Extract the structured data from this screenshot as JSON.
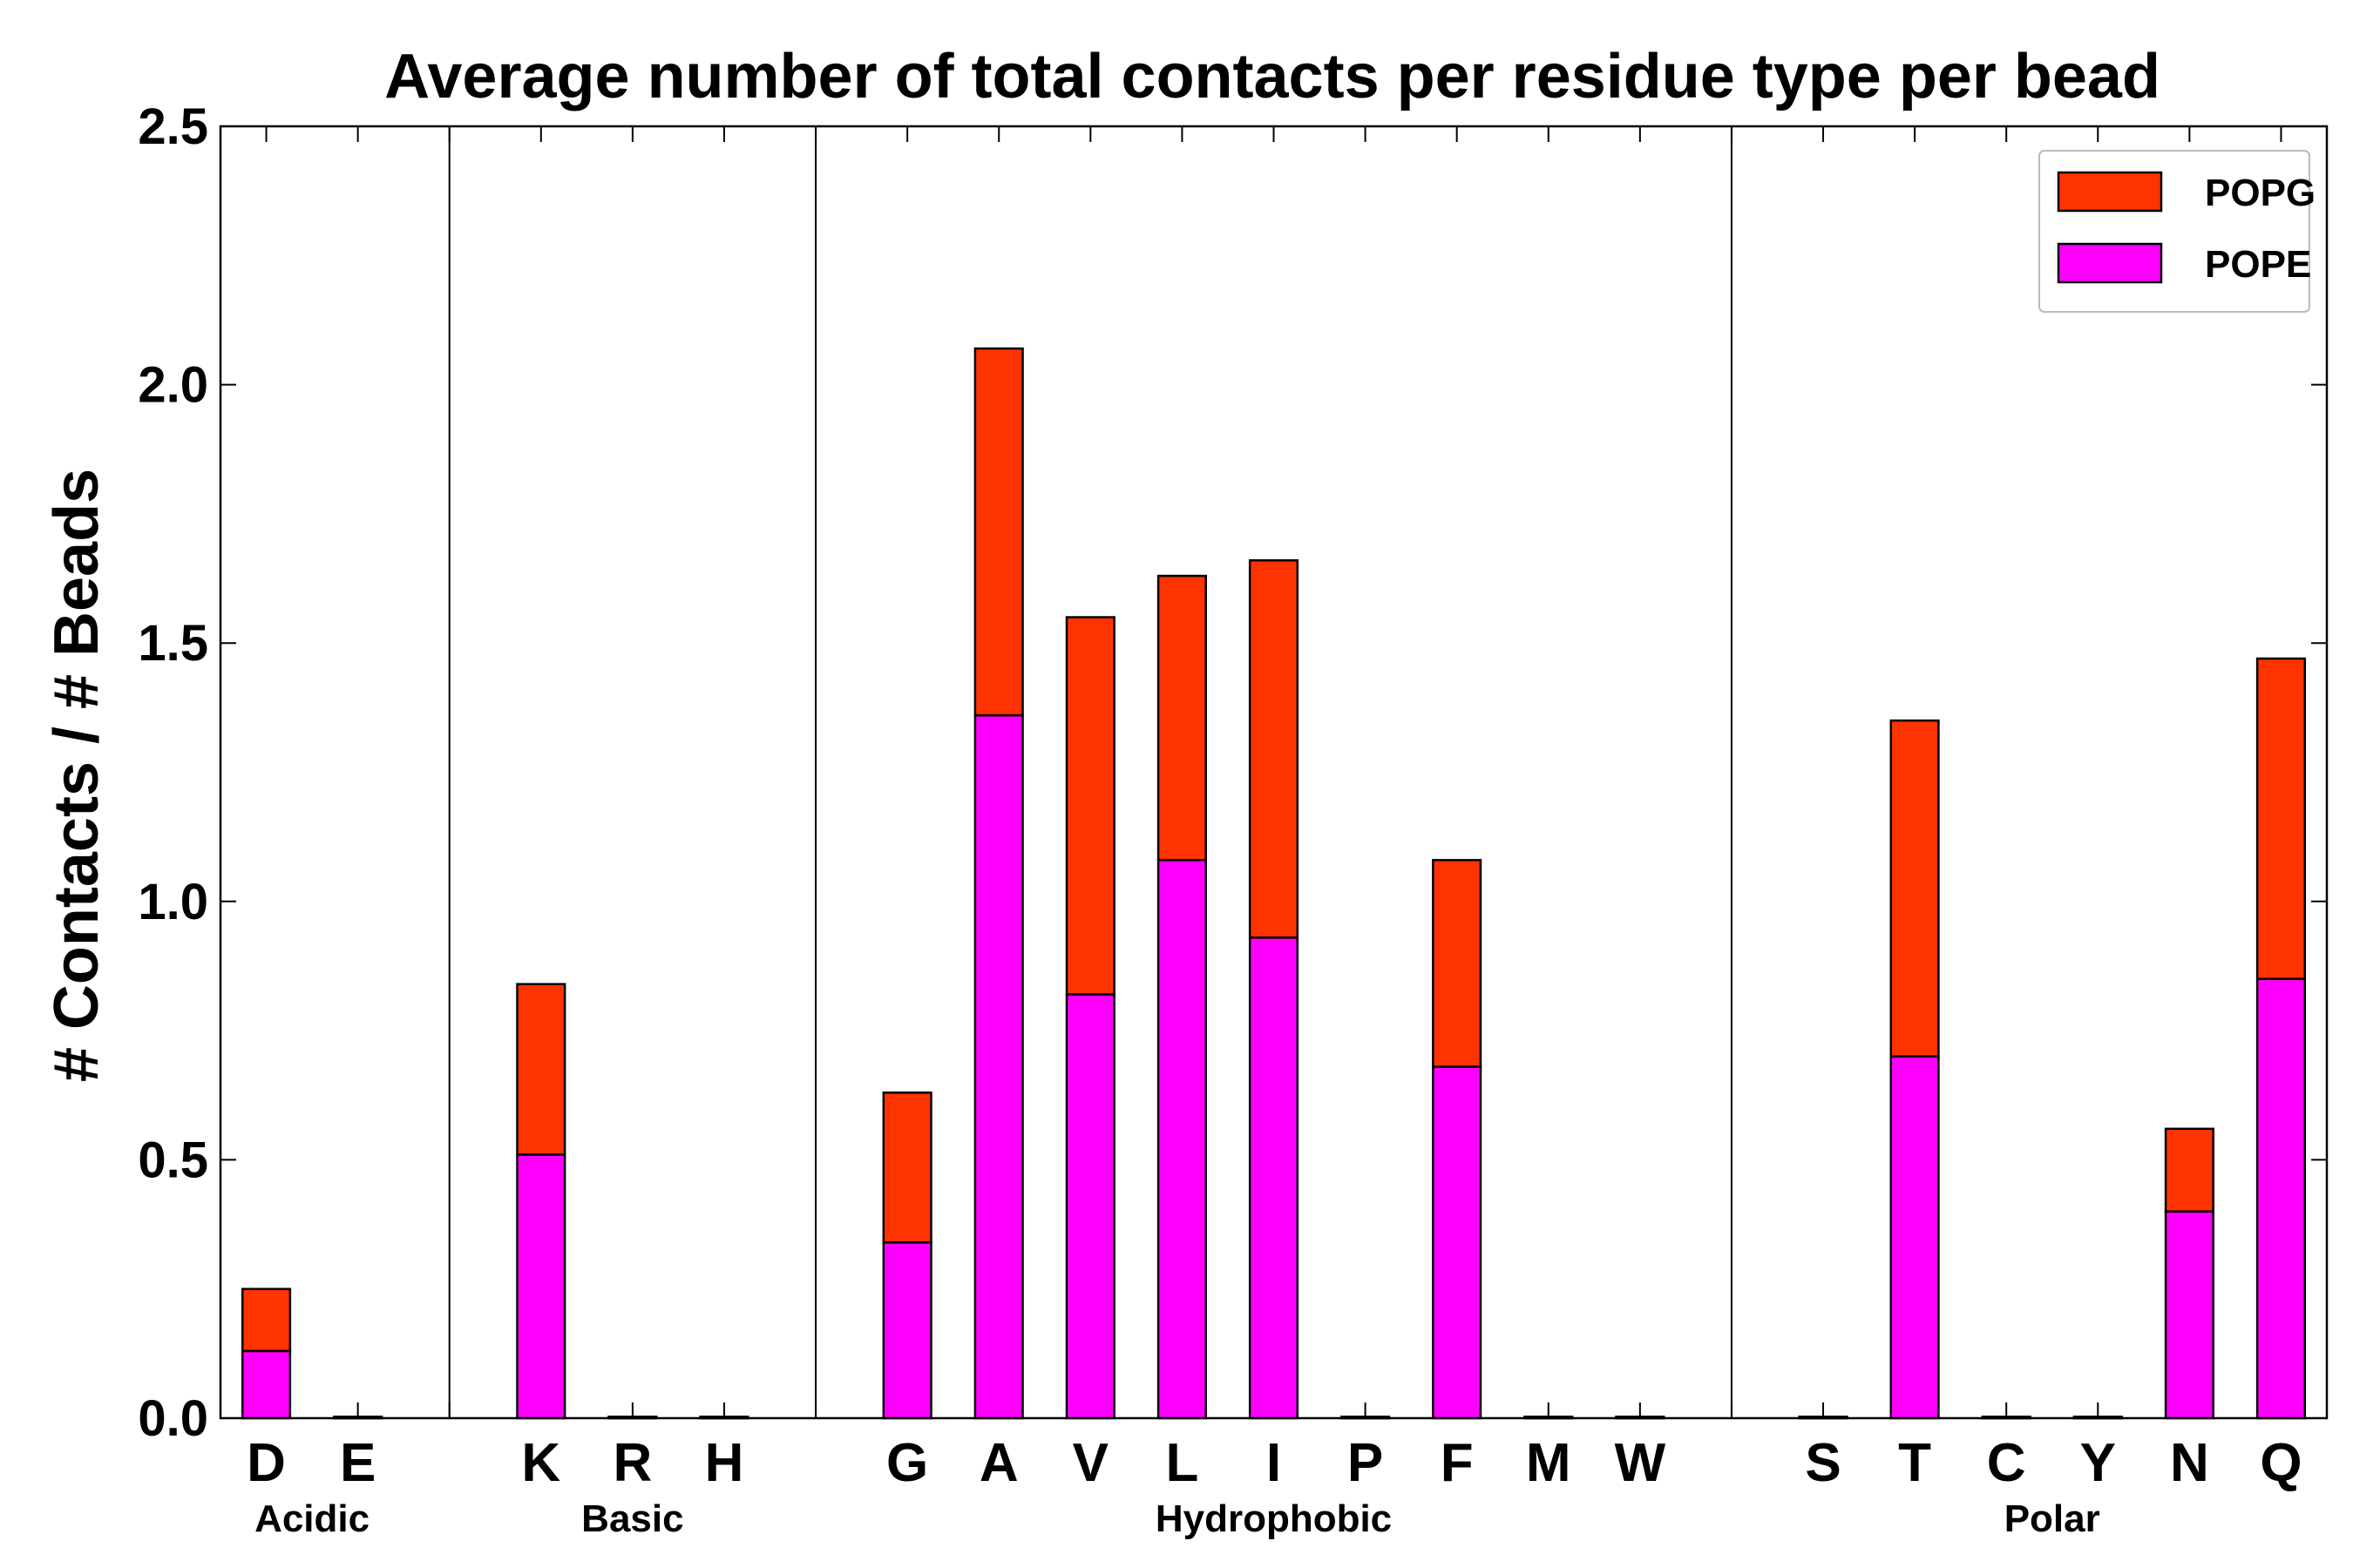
{
  "chart_data": {
    "type": "bar",
    "stacked": true,
    "title": "Average number of total contacts per residue type per bead",
    "xlabel": "",
    "ylabel": "# Contacts / # Beads",
    "ylim": [
      0,
      2.5
    ],
    "yticks": [
      "0.0",
      "0.5",
      "1.0",
      "1.5",
      "2.0",
      "2.5"
    ],
    "categories": [
      "D",
      "E",
      "",
      "K",
      "R",
      "H",
      "",
      "G",
      "A",
      "V",
      "L",
      "I",
      "P",
      "F",
      "M",
      "W",
      "",
      "S",
      "T",
      "C",
      "Y",
      "N",
      "Q"
    ],
    "series": [
      {
        "name": "POPE",
        "color": "#ff00ff",
        "values": [
          0.13,
          0,
          0,
          0.51,
          0,
          0,
          0,
          0.34,
          1.36,
          0.82,
          1.08,
          0.93,
          0,
          0.68,
          0,
          0,
          0,
          0,
          0.7,
          0,
          0,
          0.4,
          0.85
        ]
      },
      {
        "name": "POPG",
        "color": "#ff3300",
        "values": [
          0.12,
          0,
          0,
          0.33,
          0,
          0,
          0,
          0.29,
          0.71,
          0.73,
          0.55,
          0.73,
          0,
          0.4,
          0,
          0,
          0,
          0,
          0.65,
          0,
          0,
          0.16,
          0.62
        ]
      }
    ],
    "groups": [
      {
        "label": "Acidic",
        "start": 0,
        "end": 1
      },
      {
        "label": "Basic",
        "start": 3,
        "end": 5
      },
      {
        "label": "Hydrophobic",
        "start": 7,
        "end": 15
      },
      {
        "label": "Polar",
        "start": 17,
        "end": 22
      }
    ],
    "separators_after": [
      2,
      6,
      16
    ],
    "legend": {
      "position": "top-right",
      "order": [
        "POPG",
        "POPE"
      ]
    }
  }
}
